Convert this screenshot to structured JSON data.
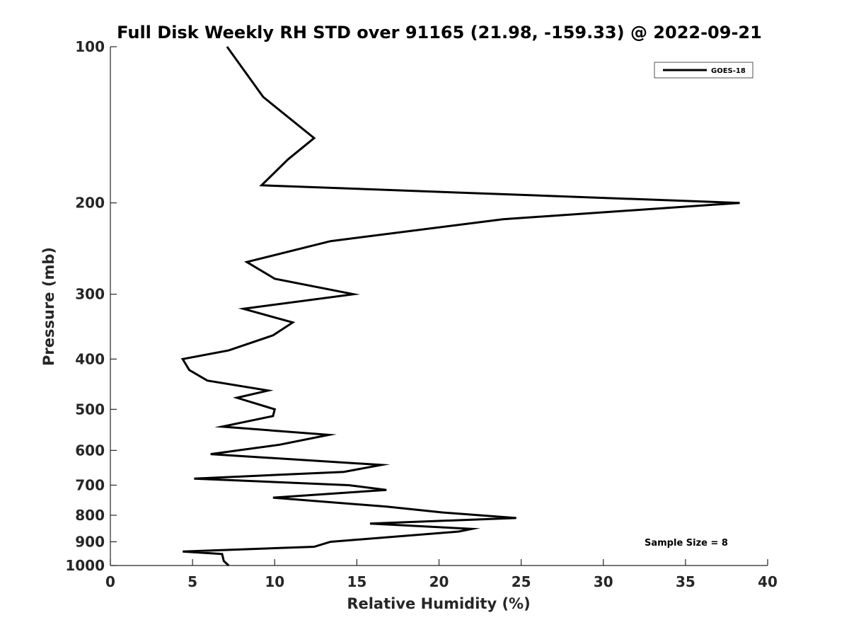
{
  "chart_data": {
    "type": "line",
    "title": "Full Disk Weekly RH STD over 91165 (21.98, -159.33) @ 2022-09-21",
    "xlabel": "Relative Humidity (%)",
    "ylabel": "Pressure (mb)",
    "xlim": [
      0,
      40
    ],
    "ylim": [
      100,
      1000
    ],
    "y_scale": "log",
    "y_reversed": true,
    "x_ticks": [
      0,
      5,
      10,
      15,
      20,
      25,
      30,
      35,
      40
    ],
    "y_ticks": [
      100,
      200,
      300,
      400,
      500,
      600,
      700,
      800,
      900,
      1000
    ],
    "grid": false,
    "legend_placement": "top-right",
    "annotation": "Sample Size = 8",
    "series": [
      {
        "name": "GOES-18",
        "color": "#000000",
        "points": [
          [
            7.1,
            100
          ],
          [
            9.3,
            125
          ],
          [
            12.4,
            150
          ],
          [
            10.8,
            165
          ],
          [
            9.2,
            185
          ],
          [
            38.3,
            200
          ],
          [
            23.9,
            215
          ],
          [
            13.4,
            237
          ],
          [
            8.3,
            260
          ],
          [
            10.0,
            280
          ],
          [
            14.8,
            300
          ],
          [
            8.1,
            320
          ],
          [
            11.1,
            340
          ],
          [
            9.9,
            360
          ],
          [
            7.2,
            385
          ],
          [
            4.4,
            400
          ],
          [
            4.8,
            420
          ],
          [
            5.9,
            440
          ],
          [
            9.6,
            460
          ],
          [
            7.7,
            475
          ],
          [
            10.0,
            500
          ],
          [
            9.9,
            515
          ],
          [
            6.8,
            540
          ],
          [
            13.3,
            560
          ],
          [
            10.3,
            585
          ],
          [
            6.1,
            610
          ],
          [
            16.5,
            640
          ],
          [
            14.2,
            660
          ],
          [
            5.1,
            680
          ],
          [
            14.5,
            700
          ],
          [
            16.8,
            715
          ],
          [
            9.9,
            740
          ],
          [
            16.8,
            770
          ],
          [
            20.2,
            790
          ],
          [
            24.7,
            810
          ],
          [
            15.8,
            830
          ],
          [
            22.0,
            850
          ],
          [
            21.2,
            860
          ],
          [
            13.4,
            900
          ],
          [
            12.4,
            920
          ],
          [
            4.4,
            940
          ],
          [
            6.8,
            950
          ],
          [
            6.9,
            980
          ],
          [
            7.2,
            1000
          ]
        ]
      }
    ]
  }
}
